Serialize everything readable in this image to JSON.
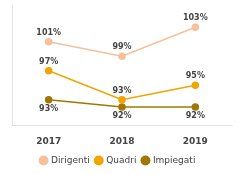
{
  "chart_data": {
    "type": "line",
    "categories": [
      "2017",
      "2018",
      "2019"
    ],
    "series": [
      {
        "name": "Dirigenti",
        "color": "#f5c09a",
        "values": [
          101,
          99,
          103
        ],
        "value_labels": [
          "101%",
          "99%",
          "103%"
        ]
      },
      {
        "name": "Quadri",
        "color": "#f0a500",
        "values": [
          97,
          93,
          95
        ],
        "value_labels": [
          "97%",
          "93%",
          "95%"
        ]
      },
      {
        "name": "Impiegati",
        "color": "#a07800",
        "values": [
          93,
          92,
          92
        ],
        "value_labels": [
          "93%",
          "92%",
          "92%"
        ]
      }
    ],
    "ylim": [
      89.5,
      106
    ],
    "grid": false,
    "legend": "bottom",
    "data_labels": true,
    "tick_labels": "x",
    "marker": "circle"
  }
}
